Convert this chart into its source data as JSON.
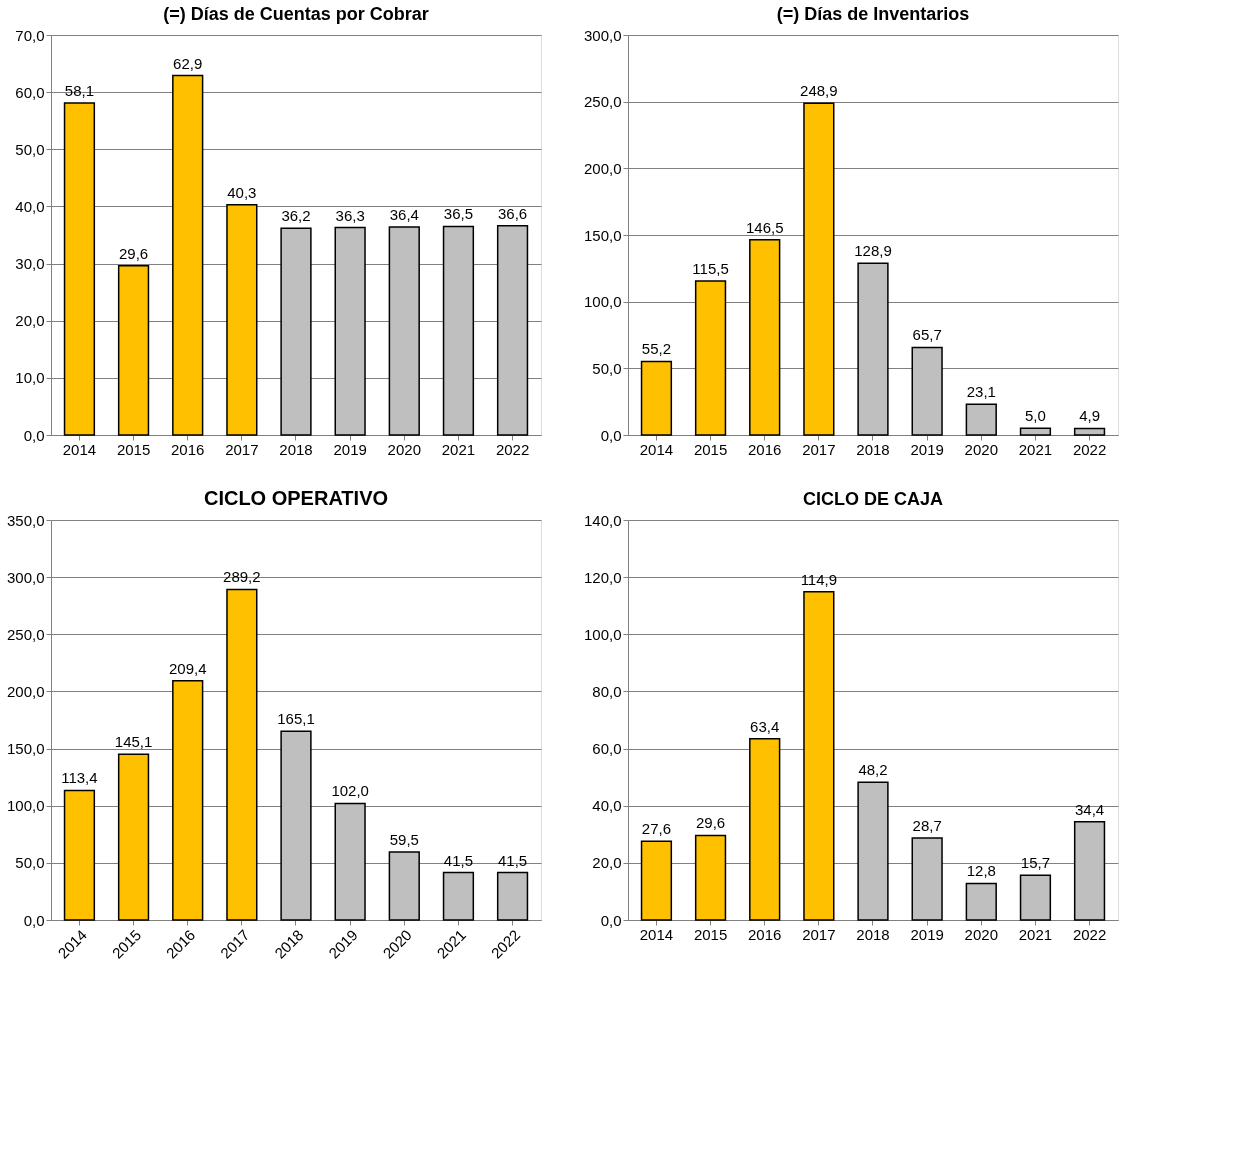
{
  "chart_data": [
    {
      "type": "bar",
      "title": "(=) Días de Cuentas por Cobrar",
      "categories": [
        "2014",
        "2015",
        "2016",
        "2017",
        "2018",
        "2019",
        "2020",
        "2021",
        "2022"
      ],
      "values": [
        58.1,
        29.6,
        62.9,
        40.3,
        36.2,
        36.3,
        36.4,
        36.5,
        36.6
      ],
      "colors": [
        "#ffc000",
        "#ffc000",
        "#ffc000",
        "#ffc000",
        "#bfbfbf",
        "#bfbfbf",
        "#bfbfbf",
        "#bfbfbf",
        "#bfbfbf"
      ],
      "value_labels": [
        "58,1",
        "29,6",
        "62,9",
        "40,3",
        "36,2",
        "36,3",
        "36,4",
        "36,5",
        "36,6"
      ],
      "ylim": [
        0,
        70
      ],
      "yticks": [
        {
          "value": 0,
          "label": "0,0"
        },
        {
          "value": 10,
          "label": "10,0"
        },
        {
          "value": 20,
          "label": "20,0"
        },
        {
          "value": 30,
          "label": "30,0"
        },
        {
          "value": 40,
          "label": "40,0"
        },
        {
          "value": 50,
          "label": "50,0"
        },
        {
          "value": 60,
          "label": "60,0"
        },
        {
          "value": 70,
          "label": "70,0"
        }
      ],
      "grid": "y"
    },
    {
      "type": "bar",
      "title": "(=) Días de Inventarios",
      "categories": [
        "2014",
        "2015",
        "2016",
        "2017",
        "2018",
        "2019",
        "2020",
        "2021",
        "2022"
      ],
      "values": [
        55.2,
        115.5,
        146.5,
        248.9,
        128.9,
        65.7,
        23.1,
        5.0,
        4.9
      ],
      "colors": [
        "#ffc000",
        "#ffc000",
        "#ffc000",
        "#ffc000",
        "#bfbfbf",
        "#bfbfbf",
        "#bfbfbf",
        "#bfbfbf",
        "#bfbfbf"
      ],
      "value_labels": [
        "55,2",
        "115,5",
        "146,5",
        "248,9",
        "128,9",
        "65,7",
        "23,1",
        "5,0",
        "4,9"
      ],
      "ylim": [
        0,
        300
      ],
      "yticks": [
        {
          "value": 0,
          "label": "0,0"
        },
        {
          "value": 50,
          "label": "50,0"
        },
        {
          "value": 100,
          "label": "100,0"
        },
        {
          "value": 150,
          "label": "150,0"
        },
        {
          "value": 200,
          "label": "200,0"
        },
        {
          "value": 250,
          "label": "250,0"
        },
        {
          "value": 300,
          "label": "300,0"
        }
      ],
      "grid": "y"
    },
    {
      "type": "bar",
      "title": "CICLO OPERATIVO",
      "categories": [
        "2014",
        "2015",
        "2016",
        "2017",
        "2018",
        "2019",
        "2020",
        "2021",
        "2022"
      ],
      "values": [
        113.4,
        145.1,
        209.4,
        289.2,
        165.1,
        102.0,
        59.5,
        41.5,
        41.5
      ],
      "colors": [
        "#ffc000",
        "#ffc000",
        "#ffc000",
        "#ffc000",
        "#bfbfbf",
        "#bfbfbf",
        "#bfbfbf",
        "#bfbfbf",
        "#bfbfbf"
      ],
      "value_labels": [
        "113,4",
        "145,1",
        "209,4",
        "289,2",
        "165,1",
        "102,0",
        "59,5",
        "41,5",
        "41,5"
      ],
      "ylim": [
        0,
        350
      ],
      "yticks": [
        {
          "value": 0,
          "label": "0,0"
        },
        {
          "value": 50,
          "label": "50,0"
        },
        {
          "value": 100,
          "label": "100,0"
        },
        {
          "value": 150,
          "label": "150,0"
        },
        {
          "value": 200,
          "label": "200,0"
        },
        {
          "value": 250,
          "label": "250,0"
        },
        {
          "value": 300,
          "label": "300,0"
        },
        {
          "value": 350,
          "label": "350,0"
        }
      ],
      "grid": "y"
    },
    {
      "type": "bar",
      "title": "CICLO DE CAJA",
      "categories": [
        "2014",
        "2015",
        "2016",
        "2017",
        "2018",
        "2019",
        "2020",
        "2021",
        "2022"
      ],
      "values": [
        27.6,
        29.6,
        63.4,
        114.9,
        48.2,
        28.7,
        12.8,
        15.7,
        34.4
      ],
      "colors": [
        "#ffc000",
        "#ffc000",
        "#ffc000",
        "#ffc000",
        "#bfbfbf",
        "#bfbfbf",
        "#bfbfbf",
        "#bfbfbf",
        "#bfbfbf"
      ],
      "value_labels": [
        "27,6",
        "29,6",
        "63,4",
        "114,9",
        "48,2",
        "28,7",
        "12,8",
        "15,7",
        "34,4"
      ],
      "ylim": [
        0,
        140
      ],
      "yticks": [
        {
          "value": 0,
          "label": "0,0"
        },
        {
          "value": 20,
          "label": "20,0"
        },
        {
          "value": 40,
          "label": "40,0"
        },
        {
          "value": 60,
          "label": "60,0"
        },
        {
          "value": 80,
          "label": "80,0"
        },
        {
          "value": 100,
          "label": "100,0"
        },
        {
          "value": 120,
          "label": "120,0"
        },
        {
          "value": 140,
          "label": "140,0"
        }
      ],
      "grid": "y"
    }
  ]
}
